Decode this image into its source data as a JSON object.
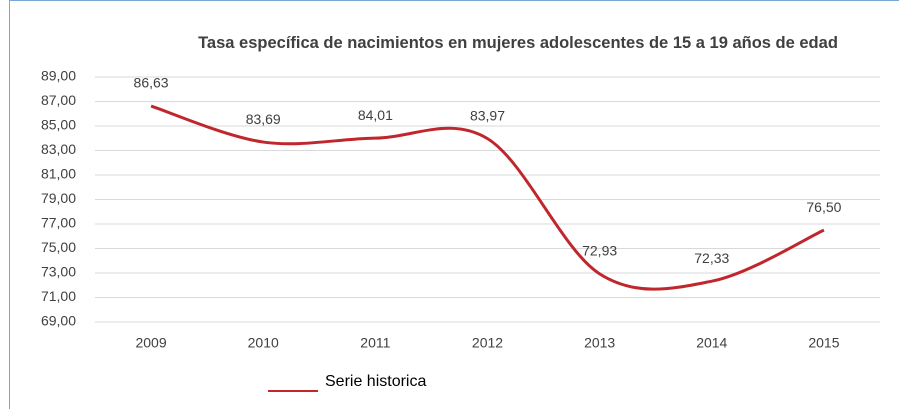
{
  "chart_data": {
    "type": "line",
    "title": "Tasa específica de nacimientos en mujeres adolescentes de 15 a 19 años de edad",
    "categories": [
      "2009",
      "2010",
      "2011",
      "2012",
      "2013",
      "2014",
      "2015"
    ],
    "series": [
      {
        "name": "Serie historica",
        "color": "#c0272d",
        "values": [
          86.63,
          83.69,
          84.01,
          83.97,
          72.93,
          72.33,
          76.5
        ],
        "value_labels": [
          "86,63",
          "83,69",
          "84,01",
          "83,97",
          "72,93",
          "72,33",
          "76,50"
        ]
      }
    ],
    "ylim": [
      69,
      89
    ],
    "yticks": [
      {
        "value": 69,
        "label": "69,00"
      },
      {
        "value": 71,
        "label": "71,00"
      },
      {
        "value": 73,
        "label": "73,00"
      },
      {
        "value": 75,
        "label": "75,00"
      },
      {
        "value": 77,
        "label": "77,00"
      },
      {
        "value": 79,
        "label": "79,00"
      },
      {
        "value": 81,
        "label": "81,00"
      },
      {
        "value": 83,
        "label": "83,00"
      },
      {
        "value": 85,
        "label": "85,00"
      },
      {
        "value": 87,
        "label": "87,00"
      },
      {
        "value": 89,
        "label": "89,00"
      }
    ],
    "grid": true,
    "smooth": true,
    "legend": "bottom-left"
  }
}
